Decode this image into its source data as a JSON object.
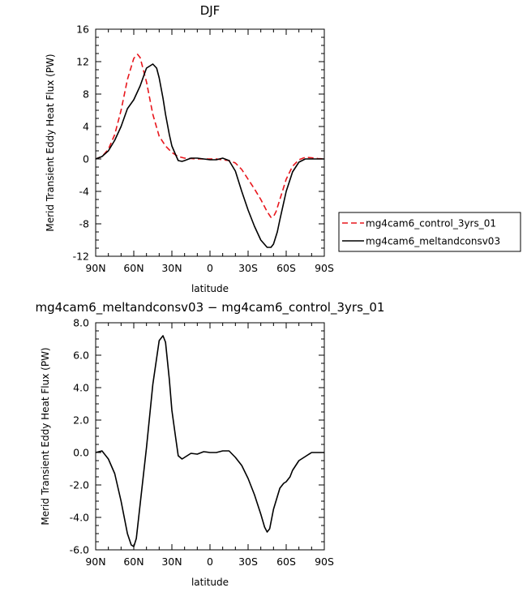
{
  "chart_data": [
    {
      "type": "line",
      "title": "DJF",
      "xlabel": "latitude",
      "ylabel": "Merid Transient Eddy Heat Flux (PW)",
      "xlim": [
        90,
        -90
      ],
      "ylim": [
        -12,
        16
      ],
      "x_ticks": [
        90,
        60,
        30,
        0,
        -30,
        -60,
        -90
      ],
      "x_tick_labels": [
        "90N",
        "60N",
        "30N",
        "0",
        "30S",
        "60S",
        "90S"
      ],
      "y_ticks": [
        -12,
        -8,
        -4,
        0,
        4,
        8,
        12,
        16
      ],
      "y_tick_labels": [
        "-12",
        "-8",
        "-4",
        "0",
        "4",
        "8",
        "12",
        "16"
      ],
      "grid": false,
      "legend_position": "right",
      "series": [
        {
          "name": "mg4cam6_control_3yrs_01",
          "color": "#e8161c",
          "dash": "dashed",
          "x": [
            90,
            85,
            80,
            75,
            70,
            65,
            60,
            57,
            55,
            50,
            45,
            40,
            35,
            30,
            25,
            20,
            15,
            10,
            5,
            0,
            -5,
            -10,
            -15,
            -20,
            -25,
            -30,
            -35,
            -40,
            -45,
            -48,
            -50,
            -52,
            -55,
            -60,
            -65,
            -70,
            -75,
            -80,
            -85,
            -90
          ],
          "y": [
            0,
            0.3,
            1.2,
            3.0,
            6.0,
            9.8,
            12.4,
            12.9,
            12.5,
            9.5,
            5.5,
            2.8,
            1.6,
            0.8,
            0.3,
            0.1,
            0.05,
            0,
            0,
            0,
            0,
            -0.1,
            -0.2,
            -0.5,
            -1.3,
            -2.5,
            -3.7,
            -5.0,
            -6.5,
            -7.2,
            -7.1,
            -6.5,
            -5.0,
            -2.5,
            -0.9,
            -0.1,
            0.2,
            0.15,
            0.05,
            0
          ]
        },
        {
          "name": "mg4cam6_meltandconsv03",
          "color": "#000000",
          "dash": "solid",
          "x": [
            90,
            85,
            80,
            75,
            70,
            65,
            60,
            55,
            50,
            45,
            42,
            40,
            37,
            35,
            32,
            30,
            27,
            25,
            22,
            20,
            15,
            10,
            5,
            0,
            -5,
            -10,
            -15,
            -20,
            -25,
            -30,
            -35,
            -40,
            -45,
            -48,
            -50,
            -53,
            -55,
            -60,
            -65,
            -70,
            -75,
            -80,
            -85,
            -90
          ],
          "y": [
            0,
            0.3,
            1.0,
            2.3,
            4.0,
            6.2,
            7.3,
            9.0,
            11.2,
            11.7,
            11.2,
            10.0,
            7.5,
            5.5,
            3.0,
            1.6,
            0.5,
            -0.2,
            -0.3,
            -0.2,
            0.1,
            0.1,
            0,
            -0.1,
            -0.1,
            0.1,
            -0.2,
            -1.5,
            -4.0,
            -6.3,
            -8.3,
            -10.0,
            -10.9,
            -10.9,
            -10.5,
            -9.0,
            -7.5,
            -4.0,
            -1.6,
            -0.4,
            0,
            0,
            0,
            0
          ]
        }
      ]
    },
    {
      "type": "line",
      "title": "mg4cam6_meltandconsv03 − mg4cam6_control_3yrs_01",
      "xlabel": "latitude",
      "ylabel": "Merid Transient Eddy Heat Flux (PW)",
      "xlim": [
        90,
        -90
      ],
      "ylim": [
        -6,
        8
      ],
      "x_ticks": [
        90,
        60,
        30,
        0,
        -30,
        -60,
        -90
      ],
      "x_tick_labels": [
        "90N",
        "60N",
        "30N",
        "0",
        "30S",
        "60S",
        "90S"
      ],
      "y_ticks": [
        -6,
        -4,
        -2,
        0,
        2,
        4,
        6,
        8
      ],
      "y_tick_labels": [
        "-6.0",
        "-4.0",
        "-2.0",
        "0.0",
        "2.0",
        "4.0",
        "6.0",
        "8.0"
      ],
      "grid": false,
      "series": [
        {
          "color": "#000000",
          "dash": "solid",
          "x": [
            90,
            85,
            80,
            75,
            70,
            65,
            62,
            60,
            58,
            55,
            50,
            45,
            40,
            37,
            35,
            32,
            30,
            27,
            25,
            22,
            20,
            15,
            10,
            5,
            0,
            -5,
            -10,
            -15,
            -20,
            -25,
            -30,
            -35,
            -40,
            -43,
            -45,
            -47,
            -50,
            -55,
            -58,
            -60,
            -63,
            -65,
            -70,
            -75,
            -80,
            -85,
            -90
          ],
          "y": [
            0,
            0.1,
            -0.4,
            -1.3,
            -3.0,
            -5.0,
            -5.7,
            -5.8,
            -5.3,
            -3.2,
            0.3,
            4.2,
            6.9,
            7.2,
            6.8,
            4.5,
            2.6,
            0.9,
            -0.2,
            -0.4,
            -0.3,
            -0.05,
            -0.1,
            0.05,
            0,
            0,
            0.1,
            0.1,
            -0.3,
            -0.8,
            -1.6,
            -2.6,
            -3.8,
            -4.6,
            -4.9,
            -4.7,
            -3.5,
            -2.2,
            -1.9,
            -1.8,
            -1.5,
            -1.1,
            -0.5,
            -0.25,
            0,
            0,
            0
          ]
        }
      ]
    }
  ]
}
